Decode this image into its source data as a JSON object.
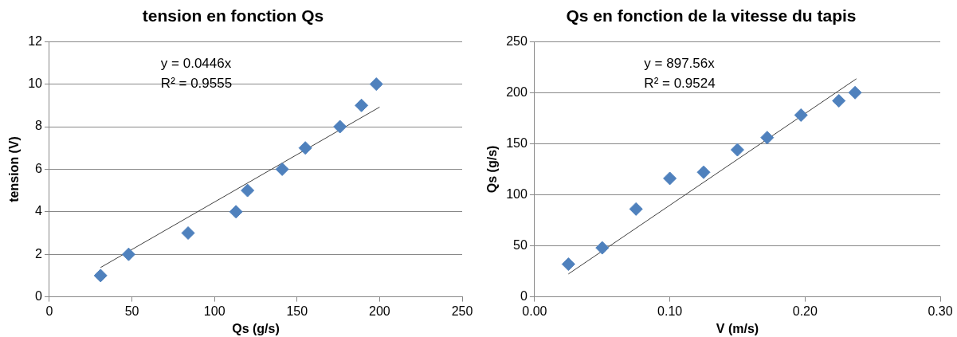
{
  "chart_data": [
    {
      "type": "scatter",
      "title": "tension en fonction Qs",
      "xlabel": "Qs (g/s)",
      "ylabel": "tension (V)",
      "xlim": [
        0,
        250
      ],
      "xticks": [
        0,
        50,
        100,
        150,
        200,
        250
      ],
      "ylim": [
        0,
        12
      ],
      "yticks": [
        0,
        2,
        4,
        6,
        8,
        10,
        12
      ],
      "grid": "y",
      "legend": false,
      "annotations": [
        "y = 0.0446x",
        "R² = 0.9555"
      ],
      "series": [
        {
          "type": "scatter",
          "color": "#4f81bd",
          "marker": "diamond",
          "x": [
            31,
            48,
            84,
            113,
            120,
            141,
            155,
            176,
            189,
            198
          ],
          "values": [
            1,
            2,
            3,
            4,
            5,
            6,
            7,
            8,
            9,
            10
          ]
        },
        {
          "type": "line",
          "color": "#404040",
          "marker": "none",
          "x": [
            31,
            200
          ],
          "values": [
            1.38,
            8.92
          ]
        }
      ]
    },
    {
      "type": "scatter",
      "title": "Qs en fonction de la vitesse du tapis",
      "xlabel": "V (m/s)",
      "ylabel": "Qs (g/s)",
      "xlim": [
        0,
        0.3
      ],
      "xticks": [
        {
          "value": 0,
          "label": "0.00"
        },
        {
          "value": 0.1,
          "label": "0.10"
        },
        {
          "value": 0.2,
          "label": "0.20"
        },
        {
          "value": 0.3,
          "label": "0.30"
        }
      ],
      "ylim": [
        0,
        250
      ],
      "yticks": [
        0,
        50,
        100,
        150,
        200,
        250
      ],
      "grid": "y",
      "legend": false,
      "annotations": [
        "y = 897.56x",
        "R² = 0.9524"
      ],
      "series": [
        {
          "type": "scatter",
          "color": "#4f81bd",
          "marker": "diamond",
          "x": [
            0.025,
            0.05,
            0.075,
            0.1,
            0.125,
            0.15,
            0.172,
            0.197,
            0.225,
            0.237
          ],
          "values": [
            32,
            48,
            86,
            116,
            122,
            144,
            156,
            178,
            192,
            200
          ]
        },
        {
          "type": "line",
          "color": "#404040",
          "marker": "none",
          "x": [
            0.025,
            0.238
          ],
          "values": [
            22.4,
            213.6
          ]
        }
      ]
    }
  ]
}
